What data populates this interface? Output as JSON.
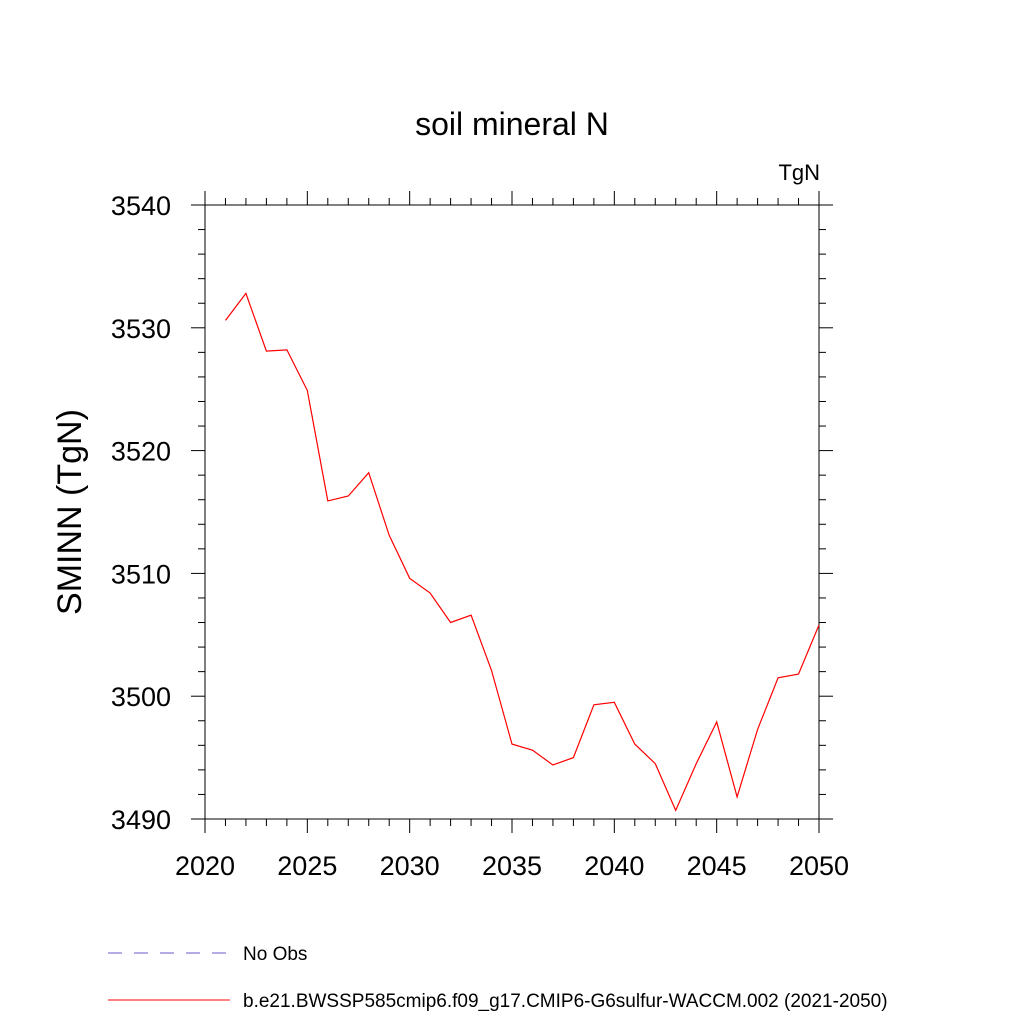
{
  "chart_data": {
    "type": "line",
    "title": "soil mineral N",
    "units": "TgN",
    "ylabel": "SMINN  (TgN)",
    "xlabel": "",
    "xlim": [
      2020,
      2050
    ],
    "ylim": [
      3490,
      3540
    ],
    "x_ticks": [
      2020,
      2025,
      2030,
      2035,
      2040,
      2045,
      2050
    ],
    "y_ticks": [
      3490,
      3500,
      3510,
      3520,
      3530,
      3540
    ],
    "grid": false,
    "legend_position": "bottom",
    "x": [
      2021,
      2022,
      2023,
      2024,
      2025,
      2026,
      2027,
      2028,
      2029,
      2030,
      2031,
      2032,
      2033,
      2034,
      2035,
      2036,
      2037,
      2038,
      2039,
      2040,
      2041,
      2042,
      2043,
      2044,
      2045,
      2046,
      2047,
      2048,
      2049,
      2050
    ],
    "series": [
      {
        "name": "b.e21.BWSSP585cmip6.f09_g17.CMIP6-G6sulfur-WACCM.002 (2021-2050)",
        "color": "#ff0000",
        "style": "solid",
        "values": [
          3530.6,
          3532.8,
          3528.1,
          3528.2,
          3524.9,
          3515.9,
          3516.3,
          3518.2,
          3513.1,
          3509.6,
          3508.4,
          3506.0,
          3506.6,
          3502.1,
          3496.1,
          3495.6,
          3494.4,
          3495.0,
          3499.3,
          3499.5,
          3496.1,
          3494.5,
          3490.7,
          3494.5,
          3497.9,
          3491.8,
          3497.3,
          3501.5,
          3501.8,
          3505.8
        ]
      }
    ],
    "legend": [
      {
        "label": "No Obs",
        "color": "#6a5acd",
        "style": "dashed"
      },
      {
        "label": "b.e21.BWSSP585cmip6.f09_g17.CMIP6-G6sulfur-WACCM.002 (2021-2050)",
        "color": "#ff0000",
        "style": "solid"
      }
    ]
  }
}
